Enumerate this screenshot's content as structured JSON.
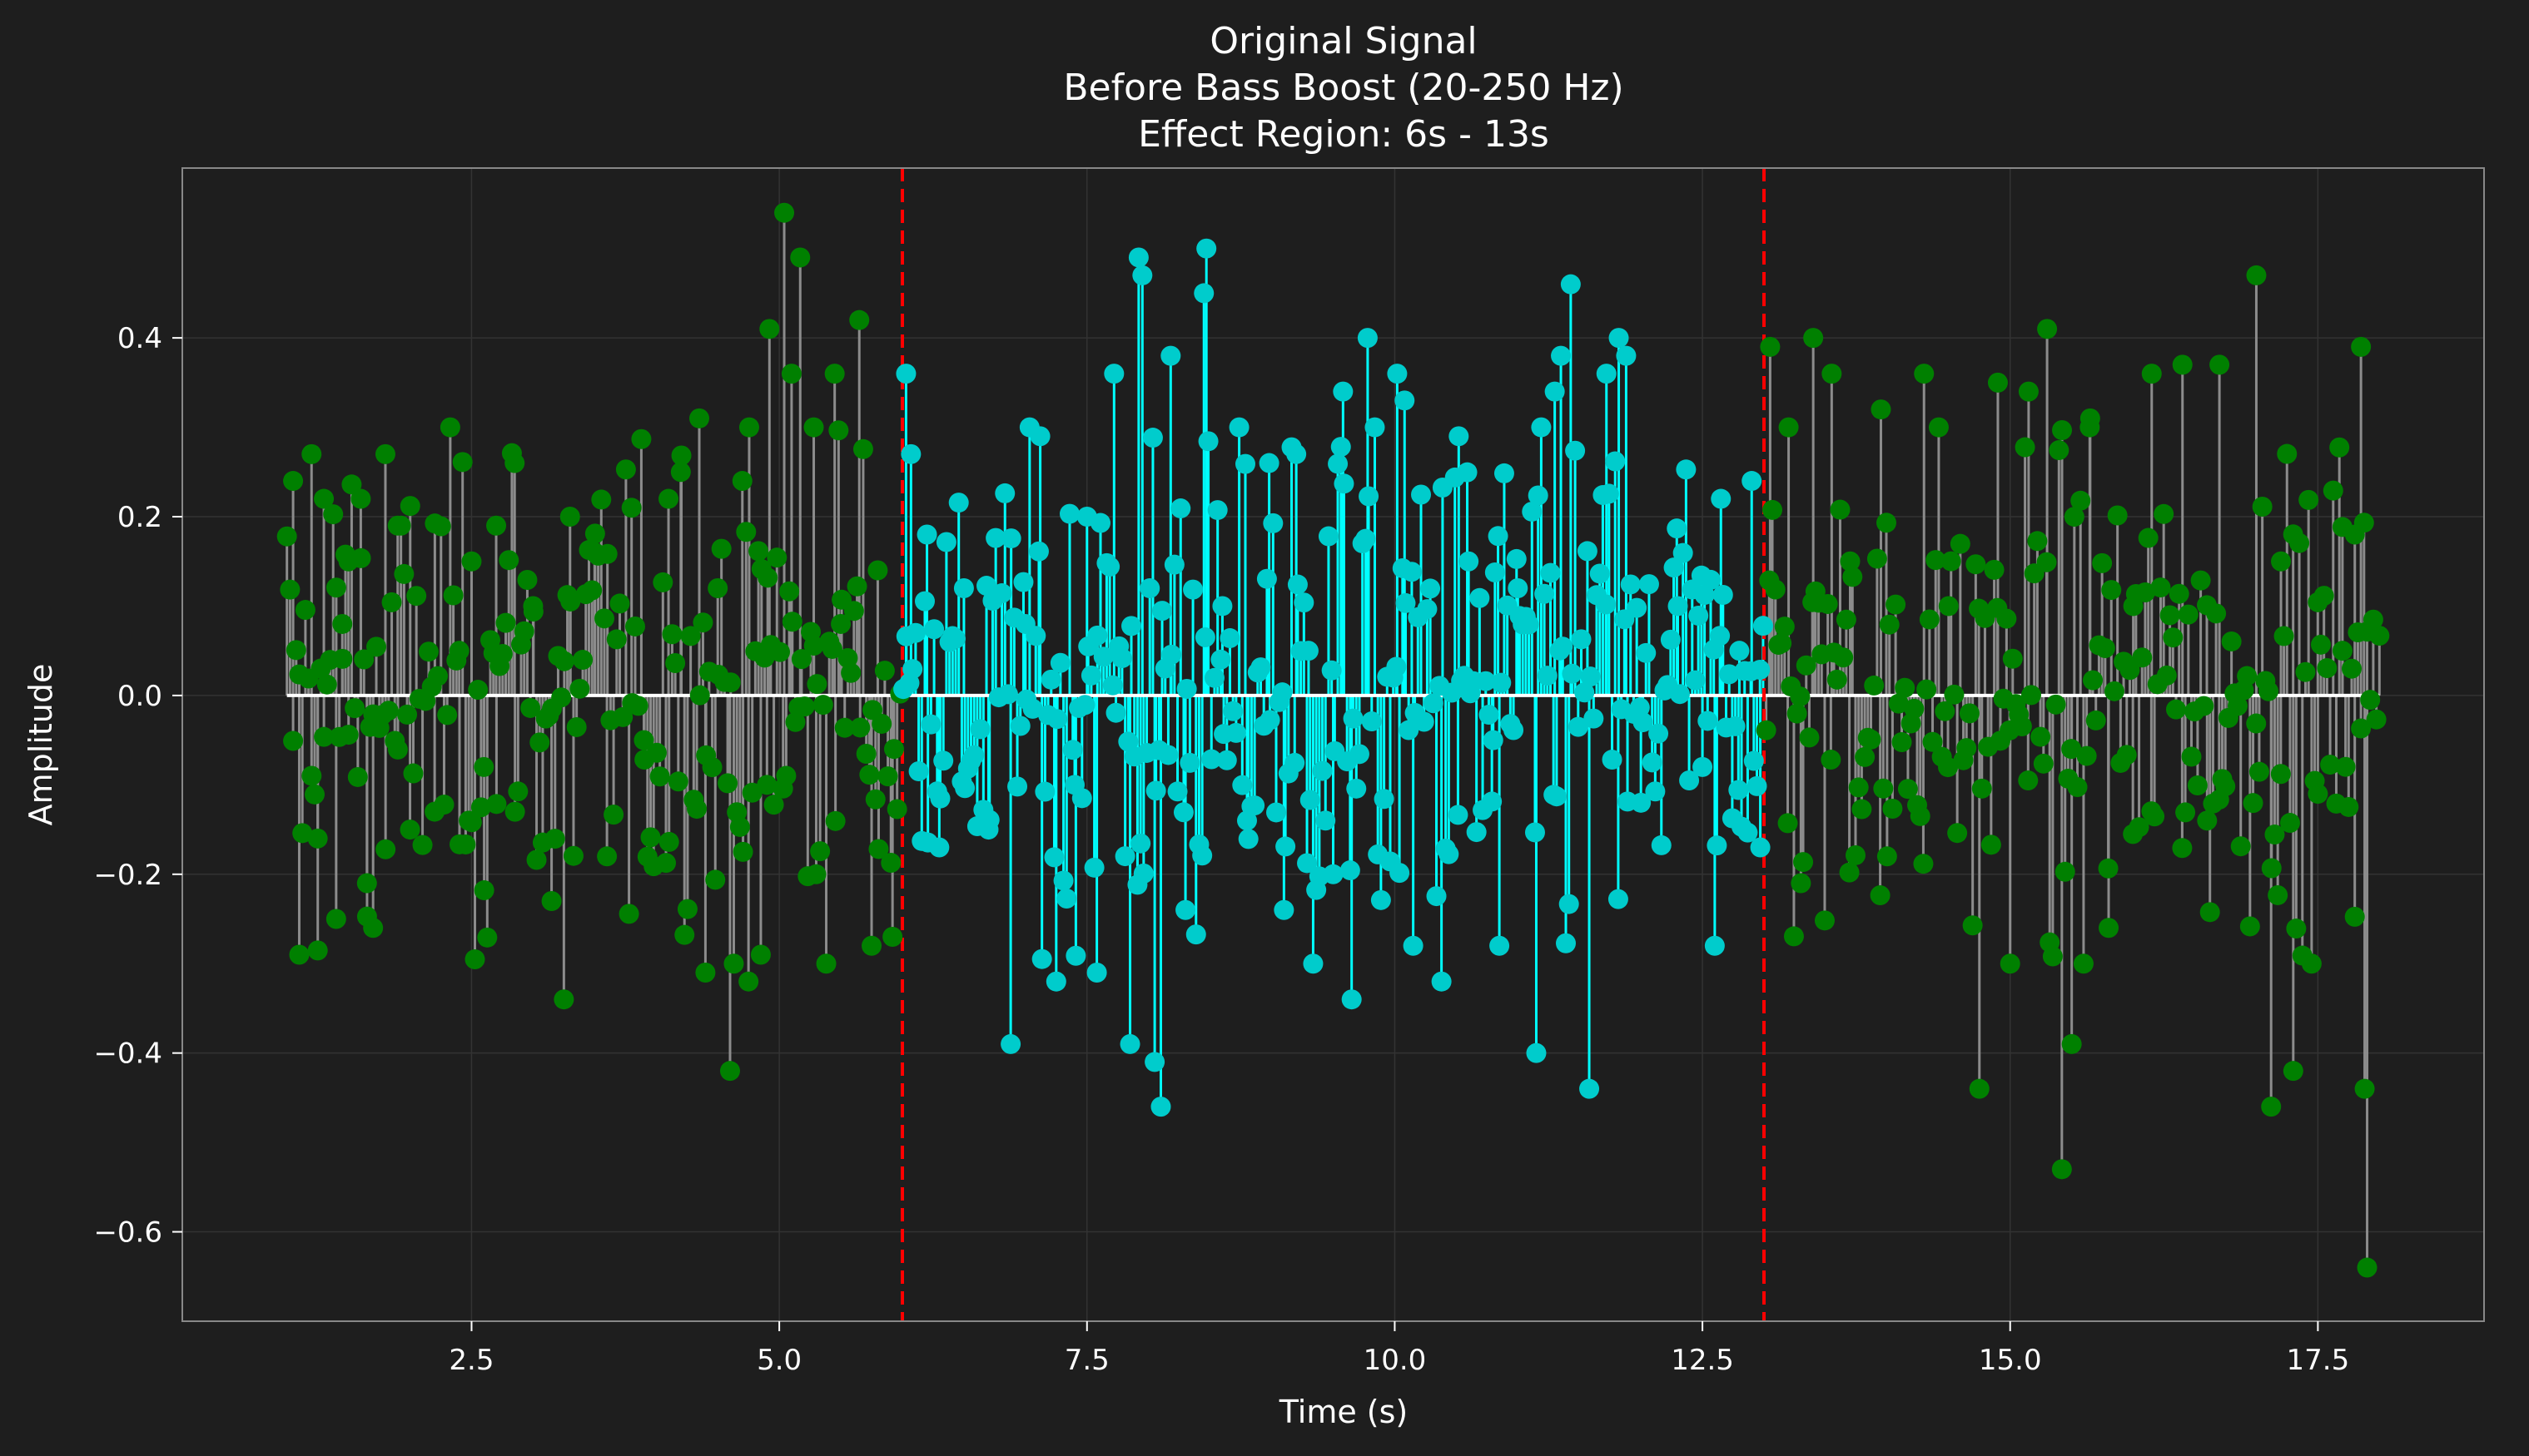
{
  "chart_data": {
    "type": "stem",
    "title_lines": [
      "Original Signal",
      "Before Bass Boost (20-250 Hz)",
      "Effect Region: 6s - 13s"
    ],
    "xlabel": "Time (s)",
    "ylabel": "Amplitude",
    "xlim": [
      0.15,
      18.85
    ],
    "ylim": [
      -0.7,
      0.59
    ],
    "x_ticks": [
      2.5,
      5.0,
      7.5,
      10.0,
      12.5,
      15.0,
      17.5
    ],
    "x_tick_labels": [
      "2.5",
      "5.0",
      "7.5",
      "10.0",
      "12.5",
      "15.0",
      "17.5"
    ],
    "y_ticks": [
      -0.6,
      -0.4,
      -0.2,
      0.0,
      0.2,
      0.4
    ],
    "y_tick_labels": [
      "−0.6",
      "−0.4",
      "−0.2",
      "0.0",
      "0.2",
      "0.4"
    ],
    "grid": true,
    "effect_region": {
      "start": 6,
      "end": 13
    },
    "x_range": [
      1.0,
      18.0
    ],
    "sample_count": 680,
    "colors": {
      "background": "#1e1e1e",
      "spine": "#888888",
      "grid": "#333333",
      "outside_stem": "#8c8c8c",
      "outside_marker": "#008000",
      "inside_stem": "#00ffff",
      "inside_marker": "#00cccc",
      "baseline": "#ffffff",
      "region_line": "#ff0000"
    },
    "outside_samples": [
      [
        1.05,
        0.24
      ],
      [
        1.1,
        -0.29
      ],
      [
        1.2,
        0.27
      ],
      [
        1.3,
        0.22
      ],
      [
        1.4,
        -0.25
      ],
      [
        1.5,
        0.15
      ],
      [
        1.6,
        0.22
      ],
      [
        1.7,
        -0.26
      ],
      [
        1.8,
        0.27
      ],
      [
        1.9,
        0.19
      ],
      [
        2.0,
        -0.15
      ],
      [
        2.5,
        0.15
      ],
      [
        2.7,
        0.19
      ],
      [
        2.85,
        0.26
      ],
      [
        3.25,
        -0.34
      ],
      [
        3.3,
        0.2
      ],
      [
        3.5,
        0.16
      ],
      [
        3.8,
        0.21
      ],
      [
        4.1,
        0.22
      ],
      [
        4.2,
        0.25
      ],
      [
        4.35,
        0.31
      ],
      [
        4.4,
        -0.31
      ],
      [
        4.6,
        -0.42
      ],
      [
        4.7,
        0.24
      ],
      [
        4.75,
        -0.32
      ],
      [
        4.85,
        -0.29
      ],
      [
        4.92,
        0.41
      ],
      [
        5.04,
        0.54
      ],
      [
        5.1,
        0.36
      ],
      [
        5.17,
        0.49
      ],
      [
        5.28,
        0.3
      ],
      [
        5.45,
        0.36
      ],
      [
        5.65,
        0.42
      ],
      [
        5.75,
        -0.28
      ],
      [
        5.92,
        -0.27
      ],
      [
        13.05,
        0.39
      ],
      [
        13.2,
        0.3
      ],
      [
        13.4,
        0.4
      ],
      [
        13.55,
        0.36
      ],
      [
        13.95,
        0.32
      ],
      [
        14.3,
        0.36
      ],
      [
        14.75,
        -0.44
      ],
      [
        14.9,
        0.35
      ],
      [
        15.15,
        0.34
      ],
      [
        15.3,
        0.41
      ],
      [
        15.42,
        -0.53
      ],
      [
        15.5,
        -0.39
      ],
      [
        15.65,
        0.31
      ],
      [
        16.15,
        0.36
      ],
      [
        16.4,
        0.37
      ],
      [
        16.7,
        0.37
      ],
      [
        17.0,
        0.47
      ],
      [
        17.3,
        -0.42
      ],
      [
        17.12,
        -0.46
      ],
      [
        17.85,
        0.39
      ],
      [
        17.9,
        -0.64
      ],
      [
        17.88,
        -0.44
      ],
      [
        17.8,
        0.18
      ],
      [
        1.25,
        -0.16
      ],
      [
        1.45,
        0.08
      ],
      [
        1.65,
        -0.21
      ],
      [
        2.2,
        -0.13
      ],
      [
        2.4,
        0.05
      ],
      [
        2.6,
        -0.08
      ],
      [
        3.0,
        0.1
      ],
      [
        3.15,
        -0.23
      ],
      [
        3.6,
        -0.18
      ],
      [
        3.9,
        -0.05
      ],
      [
        4.5,
        0.12
      ],
      [
        4.9,
        -0.1
      ],
      [
        5.3,
        -0.2
      ],
      [
        5.5,
        0.08
      ],
      [
        5.8,
        0.14
      ],
      [
        13.3,
        -0.21
      ],
      [
        13.7,
        0.15
      ],
      [
        14.0,
        -0.18
      ],
      [
        14.5,
        0.1
      ],
      [
        15.0,
        -0.3
      ],
      [
        15.8,
        -0.26
      ],
      [
        16.0,
        0.1
      ],
      [
        16.6,
        -0.14
      ],
      [
        17.2,
        0.15
      ],
      [
        17.5,
        -0.11
      ],
      [
        17.7,
        0.05
      ]
    ],
    "inside_samples": [
      [
        6.03,
        0.36
      ],
      [
        6.07,
        0.27
      ],
      [
        6.88,
        -0.39
      ],
      [
        7.12,
        0.29
      ],
      [
        7.25,
        -0.32
      ],
      [
        7.5,
        0.2
      ],
      [
        7.58,
        -0.31
      ],
      [
        7.72,
        0.36
      ],
      [
        7.85,
        -0.39
      ],
      [
        7.92,
        0.49
      ],
      [
        7.95,
        0.47
      ],
      [
        8.05,
        -0.41
      ],
      [
        8.1,
        -0.46
      ],
      [
        8.18,
        0.38
      ],
      [
        8.3,
        -0.24
      ],
      [
        8.45,
        0.45
      ],
      [
        8.47,
        0.5
      ],
      [
        8.98,
        0.26
      ],
      [
        9.1,
        -0.24
      ],
      [
        9.2,
        0.27
      ],
      [
        9.58,
        0.34
      ],
      [
        9.65,
        -0.34
      ],
      [
        9.78,
        0.4
      ],
      [
        10.02,
        0.36
      ],
      [
        10.08,
        0.33
      ],
      [
        10.15,
        -0.28
      ],
      [
        10.38,
        -0.32
      ],
      [
        10.52,
        0.29
      ],
      [
        10.85,
        -0.28
      ],
      [
        11.15,
        -0.4
      ],
      [
        11.3,
        0.34
      ],
      [
        11.35,
        0.38
      ],
      [
        11.43,
        0.46
      ],
      [
        11.58,
        -0.44
      ],
      [
        11.72,
        0.36
      ],
      [
        11.82,
        0.4
      ],
      [
        11.88,
        0.38
      ],
      [
        12.6,
        -0.28
      ],
      [
        12.65,
        0.22
      ],
      [
        12.9,
        0.24
      ],
      [
        12.97,
        -0.17
      ],
      [
        6.5,
        0.12
      ],
      [
        6.7,
        -0.15
      ],
      [
        7.0,
        0.08
      ],
      [
        7.4,
        -0.1
      ],
      [
        8.6,
        0.1
      ],
      [
        8.8,
        -0.14
      ],
      [
        9.3,
        0.05
      ],
      [
        9.5,
        -0.2
      ],
      [
        10.6,
        0.15
      ],
      [
        10.8,
        -0.05
      ],
      [
        11.0,
        0.12
      ],
      [
        12.0,
        -0.12
      ],
      [
        12.3,
        0.1
      ],
      [
        12.5,
        -0.08
      ],
      [
        6.3,
        -0.17
      ],
      [
        6.2,
        0.18
      ],
      [
        12.8,
        0.05
      ]
    ]
  }
}
